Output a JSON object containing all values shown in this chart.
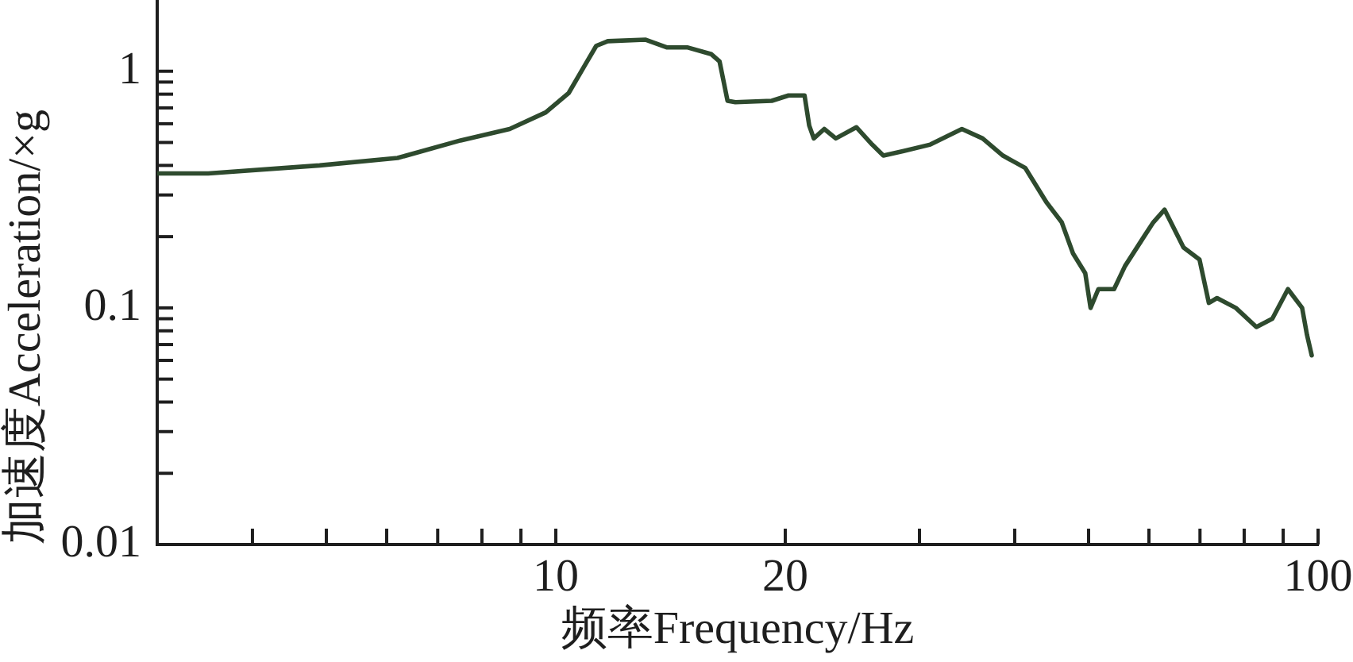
{
  "chart_data": {
    "type": "line",
    "xlabel": "频率Frequency/Hz",
    "ylabel": "加速度Acceleration/×g",
    "color": "#2e4a2e",
    "x": [
      3,
      3.5,
      4.9,
      6.2,
      7.5,
      8.7,
      9.7,
      10.4,
      10.9,
      11.3,
      11.7,
      13.1,
      14,
      14.9,
      16,
      16.4,
      16.8,
      17.2,
      19.2,
      20.2,
      21.2,
      21.5,
      21.8,
      22.5,
      23.3,
      24.8,
      26,
      26.9,
      28.6,
      31,
      34.1,
      36.3,
      38.6,
      41.3,
      44,
      46.1,
      47.7,
      49.5,
      50.3,
      51.5,
      54,
      55.8,
      59.1,
      60.8,
      62.9,
      66.6,
      69.9,
      71.9,
      73.7,
      78,
      83,
      87.1,
      91.3,
      95.3,
      96.7,
      98.1
    ],
    "values": [
      0.37,
      0.37,
      0.4,
      0.43,
      0.51,
      0.57,
      0.67,
      0.81,
      1.05,
      1.28,
      1.34,
      1.36,
      1.26,
      1.26,
      1.18,
      1.1,
      0.75,
      0.74,
      0.75,
      0.79,
      0.79,
      0.59,
      0.52,
      0.57,
      0.52,
      0.58,
      0.49,
      0.44,
      0.46,
      0.49,
      0.57,
      0.52,
      0.44,
      0.39,
      0.28,
      0.23,
      0.17,
      0.14,
      0.1,
      0.12,
      0.12,
      0.15,
      0.2,
      0.23,
      0.26,
      0.18,
      0.16,
      0.105,
      0.11,
      0.1,
      0.083,
      0.09,
      0.12,
      0.1,
      0.077,
      0.063
    ],
    "xlim": [
      3,
      100
    ],
    "ylim": [
      0.01,
      2
    ],
    "xticks": [
      {
        "value": 4,
        "label": null
      },
      {
        "value": 5,
        "label": null
      },
      {
        "value": 6,
        "label": null
      },
      {
        "value": 7,
        "label": null
      },
      {
        "value": 8,
        "label": null
      },
      {
        "value": 9,
        "label": null
      },
      10,
      20,
      {
        "value": 30,
        "label": null
      },
      {
        "value": 40,
        "label": null
      },
      {
        "value": 50,
        "label": null
      },
      {
        "value": 60,
        "label": null
      },
      {
        "value": 70,
        "label": null
      },
      {
        "value": 80,
        "label": null
      },
      {
        "value": 90,
        "label": null
      },
      100
    ],
    "yticks": [
      0.01,
      {
        "value": 0.02,
        "label": null
      },
      {
        "value": 0.03,
        "label": null
      },
      {
        "value": 0.04,
        "label": null
      },
      {
        "value": 0.05,
        "label": null
      },
      {
        "value": 0.06,
        "label": null
      },
      {
        "value": 0.07,
        "label": null
      },
      {
        "value": 0.08,
        "label": null
      },
      {
        "value": 0.09,
        "label": null
      },
      0.1,
      {
        "value": 0.2,
        "label": null
      },
      {
        "value": 0.3,
        "label": null
      },
      {
        "value": 0.4,
        "label": null
      },
      {
        "value": 0.5,
        "label": null
      },
      {
        "value": 0.6,
        "label": null
      },
      {
        "value": 0.7,
        "label": null
      },
      {
        "value": 0.8,
        "label": null
      },
      {
        "value": 0.9,
        "label": null
      },
      1
    ],
    "log": "xy"
  }
}
